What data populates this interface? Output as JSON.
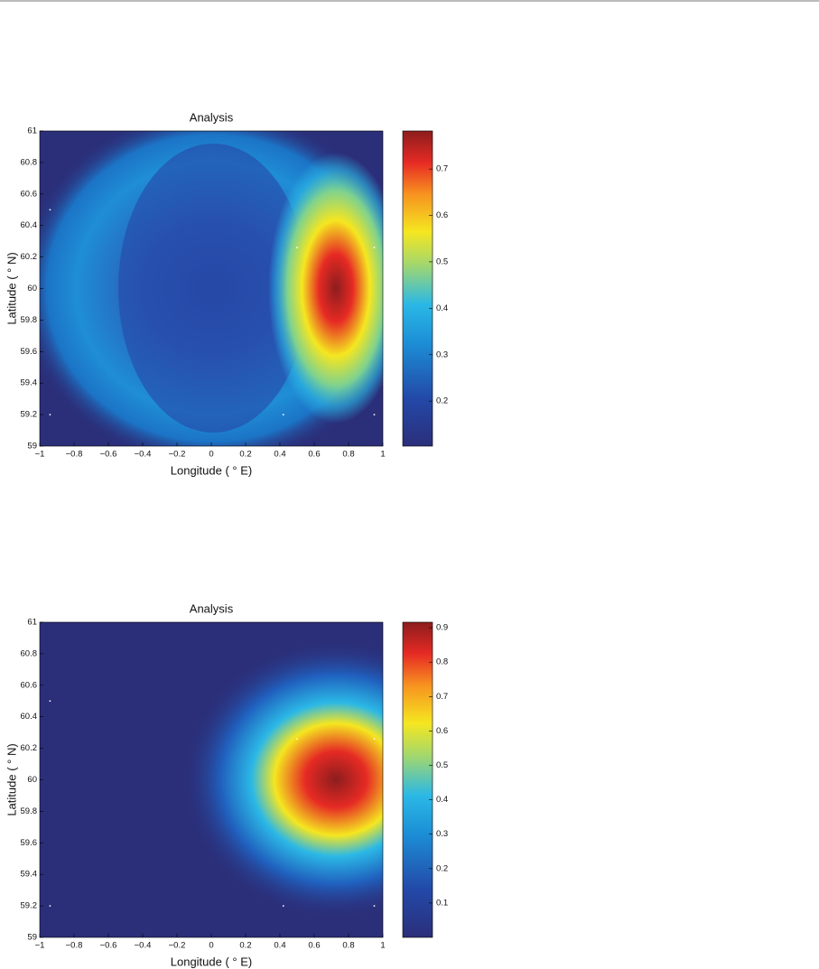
{
  "chart_data": [
    {
      "type": "heatmap",
      "title": "Analysis",
      "xlabel": "Longitude ( ° E)",
      "ylabel": "Latitude ( ° N)",
      "xlim": [
        -1,
        1
      ],
      "xticks": [
        {
          "value": -1,
          "label": "−1"
        },
        {
          "value": -0.8,
          "label": "−0.8"
        },
        {
          "value": -0.6,
          "label": "−0.6"
        },
        {
          "value": -0.4,
          "label": "−0.4"
        },
        {
          "value": -0.2,
          "label": "−0.2"
        },
        0,
        0.2,
        0.4,
        0.6,
        0.8,
        1
      ],
      "ylim": [
        59,
        61
      ],
      "yticks": [
        59,
        59.2,
        59.4,
        59.6,
        59.8,
        60,
        60.2,
        60.4,
        60.6,
        60.8,
        61
      ],
      "clim": [
        0.103,
        0.782
      ],
      "cticks": [
        0.2,
        0.3,
        0.4,
        0.5,
        0.6,
        0.7
      ],
      "points": {
        "x": [
          -0.94,
          0.5,
          0.95,
          -0.94,
          0.42,
          0.95
        ],
        "y": [
          60.5,
          60.26,
          60.26,
          59.2,
          59.2,
          59.2
        ]
      }
    },
    {
      "type": "heatmap",
      "title": "Analysis",
      "xlabel": "Longitude ( ° E)",
      "ylabel": "Latitude ( ° N)",
      "xlim": [
        -1,
        1
      ],
      "xticks": [
        {
          "value": -1,
          "label": "−1"
        },
        {
          "value": -0.8,
          "label": "−0.8"
        },
        {
          "value": -0.6,
          "label": "−0.6"
        },
        {
          "value": -0.4,
          "label": "−0.4"
        },
        {
          "value": -0.2,
          "label": "−0.2"
        },
        0,
        0.2,
        0.4,
        0.6,
        0.8,
        1
      ],
      "ylim": [
        59,
        61
      ],
      "yticks": [
        59,
        59.2,
        59.4,
        59.6,
        59.8,
        60,
        60.2,
        60.4,
        60.6,
        60.8,
        61
      ],
      "clim": [
        0,
        0.916
      ],
      "cticks": [
        0.1,
        0.2,
        0.3,
        0.4,
        0.5,
        0.6,
        0.7,
        0.8,
        0.9
      ],
      "points": {
        "x": [
          -0.94,
          0.5,
          0.95,
          -0.94,
          0.42,
          0.95
        ],
        "y": [
          60.5,
          60.26,
          60.26,
          59.2,
          59.2,
          59.2
        ]
      }
    }
  ]
}
